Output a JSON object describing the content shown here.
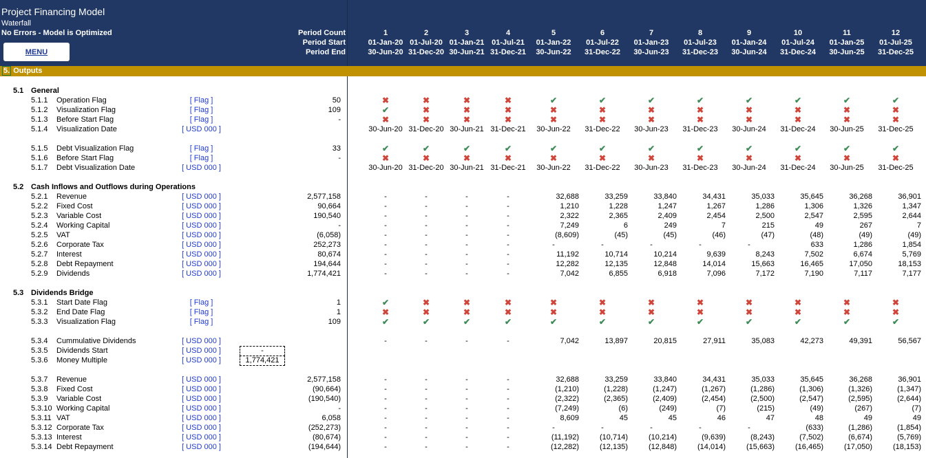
{
  "header": {
    "title": "Project Financing Model",
    "subtitle": "Waterfall",
    "status": "No Errors - Model is Optimized",
    "menu_label": "MENU",
    "period_count_label": "Period Count",
    "period_start_label": "Period Start",
    "period_end_label": "Period End",
    "periods": [
      {
        "n": "1",
        "start": "01-Jan-20",
        "end": "30-Jun-20"
      },
      {
        "n": "2",
        "start": "01-Jul-20",
        "end": "31-Dec-20"
      },
      {
        "n": "3",
        "start": "01-Jan-21",
        "end": "30-Jun-21"
      },
      {
        "n": "4",
        "start": "01-Jul-21",
        "end": "31-Dec-21"
      },
      {
        "n": "5",
        "start": "01-Jan-22",
        "end": "30-Jun-22"
      },
      {
        "n": "6",
        "start": "01-Jul-22",
        "end": "31-Dec-22"
      },
      {
        "n": "7",
        "start": "01-Jan-23",
        "end": "30-Jun-23"
      },
      {
        "n": "8",
        "start": "01-Jul-23",
        "end": "31-Dec-23"
      },
      {
        "n": "9",
        "start": "01-Jan-24",
        "end": "30-Jun-24"
      },
      {
        "n": "10",
        "start": "01-Jul-24",
        "end": "31-Dec-24"
      },
      {
        "n": "11",
        "start": "01-Jan-25",
        "end": "30-Jun-25"
      },
      {
        "n": "12",
        "start": "01-Jul-25",
        "end": "31-Dec-25"
      }
    ]
  },
  "section_bar": {
    "num": "5.",
    "title": "Outputs"
  },
  "icons": {
    "check": "check-icon",
    "cross": "cross-icon",
    "check_color": "#3d8b56",
    "cross_color": "#d0453a"
  },
  "rows": [
    {
      "type": "section",
      "num": "5.1",
      "title": "General"
    },
    {
      "type": "data",
      "code": "5.1.1",
      "label": "Operation Flag",
      "unit": "[ Flag ]",
      "total": "50",
      "mode": "flag",
      "values": [
        "x",
        "x",
        "x",
        "x",
        "v",
        "v",
        "v",
        "v",
        "v",
        "v",
        "v",
        "v"
      ]
    },
    {
      "type": "data",
      "code": "5.1.2",
      "label": "Visualization Flag",
      "unit": "[ Flag ]",
      "total": "109",
      "mode": "flag",
      "values": [
        "v",
        "x",
        "x",
        "x",
        "x",
        "x",
        "x",
        "x",
        "x",
        "x",
        "x",
        "x"
      ]
    },
    {
      "type": "data",
      "code": "5.1.3",
      "label": "Before Start Flag",
      "unit": "[ Flag ]",
      "total": "-",
      "mode": "flag",
      "values": [
        "x",
        "x",
        "x",
        "x",
        "x",
        "x",
        "x",
        "x",
        "x",
        "x",
        "x",
        "x"
      ]
    },
    {
      "type": "data",
      "code": "5.1.4",
      "label": "Visualization Date",
      "unit": "[ USD 000 ]",
      "total": "",
      "mode": "date",
      "values": [
        "30-Jun-20",
        "31-Dec-20",
        "30-Jun-21",
        "31-Dec-21",
        "30-Jun-22",
        "31-Dec-22",
        "30-Jun-23",
        "31-Dec-23",
        "30-Jun-24",
        "31-Dec-24",
        "30-Jun-25",
        "31-Dec-25"
      ]
    },
    {
      "type": "blank"
    },
    {
      "type": "data",
      "code": "5.1.5",
      "label": "Debt Visualization Flag",
      "unit": "[ Flag ]",
      "total": "33",
      "mode": "flag",
      "values": [
        "v",
        "v",
        "v",
        "v",
        "v",
        "v",
        "v",
        "v",
        "v",
        "v",
        "v",
        "v"
      ]
    },
    {
      "type": "data",
      "code": "5.1.6",
      "label": "Before Start Flag",
      "unit": "[ Flag ]",
      "total": "-",
      "mode": "flag",
      "values": [
        "x",
        "x",
        "x",
        "x",
        "x",
        "x",
        "x",
        "x",
        "x",
        "x",
        "x",
        "x"
      ]
    },
    {
      "type": "data",
      "code": "5.1.7",
      "label": "Debt Visualization Date",
      "unit": "[ USD 000 ]",
      "total": "",
      "mode": "date",
      "values": [
        "30-Jun-20",
        "31-Dec-20",
        "30-Jun-21",
        "31-Dec-21",
        "30-Jun-22",
        "31-Dec-22",
        "30-Jun-23",
        "31-Dec-23",
        "30-Jun-24",
        "31-Dec-24",
        "30-Jun-25",
        "31-Dec-25"
      ]
    },
    {
      "type": "blank"
    },
    {
      "type": "section",
      "num": "5.2",
      "title": "Cash Inflows and Outflows during Operations"
    },
    {
      "type": "data",
      "code": "5.2.1",
      "label": "Revenue",
      "unit": "[ USD 000 ]",
      "total": "2,577,158",
      "mode": "num",
      "values": [
        "-",
        "-",
        "-",
        "-",
        "32,688",
        "33,259",
        "33,840",
        "34,431",
        "35,033",
        "35,645",
        "36,268",
        "36,901"
      ]
    },
    {
      "type": "data",
      "code": "5.2.2",
      "label": "Fixed Cost",
      "unit": "[ USD 000 ]",
      "total": "90,664",
      "mode": "num",
      "values": [
        "-",
        "-",
        "-",
        "-",
        "1,210",
        "1,228",
        "1,247",
        "1,267",
        "1,286",
        "1,306",
        "1,326",
        "1,347"
      ]
    },
    {
      "type": "data",
      "code": "5.2.3",
      "label": "Variable Cost",
      "unit": "[ USD 000 ]",
      "total": "190,540",
      "mode": "num",
      "values": [
        "-",
        "-",
        "-",
        "-",
        "2,322",
        "2,365",
        "2,409",
        "2,454",
        "2,500",
        "2,547",
        "2,595",
        "2,644"
      ]
    },
    {
      "type": "data",
      "code": "5.2.4",
      "label": "Working Capital",
      "unit": "[ USD 000 ]",
      "total": "-",
      "mode": "num",
      "values": [
        "-",
        "-",
        "-",
        "-",
        "7,249",
        "6",
        "249",
        "7",
        "215",
        "49",
        "267",
        "7"
      ]
    },
    {
      "type": "data",
      "code": "5.2.5",
      "label": "VAT",
      "unit": "[ USD 000 ]",
      "total": "(6,058)",
      "mode": "num",
      "values": [
        "-",
        "-",
        "-",
        "-",
        "(8,609)",
        "(45)",
        "(45)",
        "(46)",
        "(47)",
        "(48)",
        "(49)",
        "(49)"
      ]
    },
    {
      "type": "data",
      "code": "5.2.6",
      "label": "Corporate Tax",
      "unit": "[ USD 000 ]",
      "total": "252,273",
      "mode": "num",
      "values": [
        "-",
        "-",
        "-",
        "-",
        "-",
        "-",
        "-",
        "-",
        "-",
        "633",
        "1,286",
        "1,854"
      ]
    },
    {
      "type": "data",
      "code": "5.2.7",
      "label": "Interest",
      "unit": "[ USD 000 ]",
      "total": "80,674",
      "mode": "num",
      "values": [
        "-",
        "-",
        "-",
        "-",
        "11,192",
        "10,714",
        "10,214",
        "9,639",
        "8,243",
        "7,502",
        "6,674",
        "5,769"
      ]
    },
    {
      "type": "data",
      "code": "5.2.8",
      "label": "Debt Repayment",
      "unit": "[ USD 000 ]",
      "total": "194,644",
      "mode": "num",
      "values": [
        "-",
        "-",
        "-",
        "-",
        "12,282",
        "12,135",
        "12,848",
        "14,014",
        "15,663",
        "16,465",
        "17,050",
        "18,153"
      ]
    },
    {
      "type": "data",
      "code": "5.2.9",
      "label": "Dividends",
      "unit": "[ USD 000 ]",
      "total": "1,774,421",
      "mode": "num",
      "values": [
        "-",
        "-",
        "-",
        "-",
        "7,042",
        "6,855",
        "6,918",
        "7,096",
        "7,172",
        "7,190",
        "7,117",
        "7,177"
      ]
    },
    {
      "type": "blank"
    },
    {
      "type": "section",
      "num": "5.3",
      "title": "Dividends Bridge"
    },
    {
      "type": "data",
      "code": "5.3.1",
      "label": "Start Date Flag",
      "unit": "[ Flag ]",
      "total": "1",
      "mode": "flag",
      "values": [
        "v",
        "x",
        "x",
        "x",
        "x",
        "x",
        "x",
        "x",
        "x",
        "x",
        "x",
        "x"
      ]
    },
    {
      "type": "data",
      "code": "5.3.2",
      "label": "End Date Flag",
      "unit": "[ Flag ]",
      "total": "1",
      "mode": "flag",
      "values": [
        "x",
        "x",
        "x",
        "x",
        "x",
        "x",
        "x",
        "x",
        "x",
        "x",
        "x",
        "x"
      ]
    },
    {
      "type": "data",
      "code": "5.3.3",
      "label": "Visualization Flag",
      "unit": "[ Flag ]",
      "total": "109",
      "mode": "flag",
      "values": [
        "v",
        "v",
        "v",
        "v",
        "v",
        "v",
        "v",
        "v",
        "v",
        "v",
        "v",
        "v"
      ]
    },
    {
      "type": "blank"
    },
    {
      "type": "data",
      "code": "5.3.4",
      "label": "Cummulative Dividends",
      "unit": "[ USD 000 ]",
      "total": "",
      "mode": "num",
      "values": [
        "-",
        "-",
        "-",
        "-",
        "7,042",
        "13,897",
        "20,815",
        "27,911",
        "35,083",
        "42,273",
        "49,391",
        "56,567"
      ]
    },
    {
      "type": "data",
      "code": "5.3.5",
      "label": "Dividends Start",
      "unit": "[ USD 000 ]",
      "total": "",
      "boxed": "-",
      "mode": "none",
      "values": []
    },
    {
      "type": "data",
      "code": "5.3.6",
      "label": "Money Multiple",
      "unit": "[ USD 000 ]",
      "total": "",
      "boxed": "1,774,421",
      "mode": "none",
      "values": []
    },
    {
      "type": "blank"
    },
    {
      "type": "data",
      "code": "5.3.7",
      "label": "Revenue",
      "unit": "[ USD 000 ]",
      "total": "2,577,158",
      "mode": "num",
      "values": [
        "-",
        "-",
        "-",
        "-",
        "32,688",
        "33,259",
        "33,840",
        "34,431",
        "35,033",
        "35,645",
        "36,268",
        "36,901"
      ]
    },
    {
      "type": "data",
      "code": "5.3.8",
      "label": "Fixed Cost",
      "unit": "[ USD 000 ]",
      "total": "(90,664)",
      "mode": "num",
      "values": [
        "-",
        "-",
        "-",
        "-",
        "(1,210)",
        "(1,228)",
        "(1,247)",
        "(1,267)",
        "(1,286)",
        "(1,306)",
        "(1,326)",
        "(1,347)"
      ]
    },
    {
      "type": "data",
      "code": "5.3.9",
      "label": "Variable Cost",
      "unit": "[ USD 000 ]",
      "total": "(190,540)",
      "mode": "num",
      "values": [
        "-",
        "-",
        "-",
        "-",
        "(2,322)",
        "(2,365)",
        "(2,409)",
        "(2,454)",
        "(2,500)",
        "(2,547)",
        "(2,595)",
        "(2,644)"
      ]
    },
    {
      "type": "data",
      "code": "5.3.10",
      "label": "Working Capital",
      "unit": "[ USD 000 ]",
      "total": "-",
      "mode": "num",
      "values": [
        "-",
        "-",
        "-",
        "-",
        "(7,249)",
        "(6)",
        "(249)",
        "(7)",
        "(215)",
        "(49)",
        "(267)",
        "(7)"
      ]
    },
    {
      "type": "data",
      "code": "5.3.11",
      "label": "VAT",
      "unit": "[ USD 000 ]",
      "total": "6,058",
      "mode": "num",
      "values": [
        "-",
        "-",
        "-",
        "-",
        "8,609",
        "45",
        "45",
        "46",
        "47",
        "48",
        "49",
        "49"
      ]
    },
    {
      "type": "data",
      "code": "5.3.12",
      "label": "Corporate Tax",
      "unit": "[ USD 000 ]",
      "total": "(252,273)",
      "mode": "num",
      "values": [
        "-",
        "-",
        "-",
        "-",
        "-",
        "-",
        "-",
        "-",
        "-",
        "(633)",
        "(1,286)",
        "(1,854)"
      ]
    },
    {
      "type": "data",
      "code": "5.3.13",
      "label": "Interest",
      "unit": "[ USD 000 ]",
      "total": "(80,674)",
      "mode": "num",
      "values": [
        "-",
        "-",
        "-",
        "-",
        "(11,192)",
        "(10,714)",
        "(10,214)",
        "(9,639)",
        "(8,243)",
        "(7,502)",
        "(6,674)",
        "(5,769)"
      ]
    },
    {
      "type": "data",
      "code": "5.3.14",
      "label": "Debt Repayment",
      "unit": "[ USD 000 ]",
      "total": "(194,644)",
      "mode": "num",
      "values": [
        "-",
        "-",
        "-",
        "-",
        "(12,282)",
        "(12,135)",
        "(12,848)",
        "(14,014)",
        "(15,663)",
        "(16,465)",
        "(17,050)",
        "(18,153)"
      ]
    }
  ]
}
